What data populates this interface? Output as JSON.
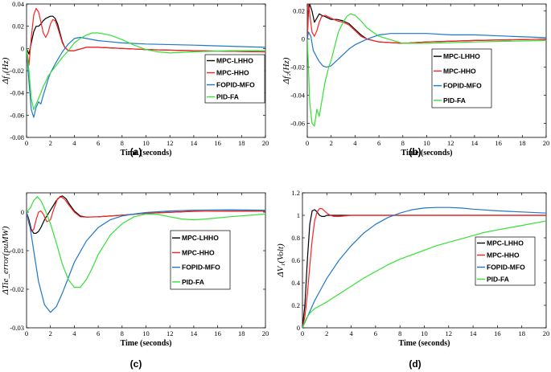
{
  "colors": {
    "MPC-LHHO": "#000000",
    "MPC-HHO": "#ff2020",
    "FOPID-MFO": "#1f77c8",
    "PID-FA": "#33e233"
  },
  "chart_data": [
    {
      "type": "line",
      "caption": "(a)",
      "xlabel": "Time (seconds)",
      "ylabel": "Δf₁(Hz)",
      "xlim": [
        0,
        20
      ],
      "ylim": [
        -0.08,
        0.04
      ],
      "xticks": [
        "0",
        "2",
        "4",
        "6",
        "8",
        "10",
        "12",
        "14",
        "16",
        "18",
        "20"
      ],
      "yticks": [
        "0.04",
        "0.02",
        "0",
        "-0.02",
        "-0.04",
        "-0.06",
        "-0.08"
      ],
      "legend_position": "center-right",
      "series": [
        {
          "name": "MPC-LHHO",
          "x": [
            0,
            0.2,
            0.4,
            0.6,
            0.8,
            1.0,
            1.2,
            1.4,
            1.6,
            1.8,
            2.0,
            2.2,
            2.4,
            2.6,
            2.8,
            3.0,
            3.2,
            3.5,
            4,
            5,
            6,
            8,
            10,
            14,
            20
          ],
          "y": [
            0,
            -0.005,
            0.005,
            0.015,
            0.02,
            0.02,
            0.022,
            0.025,
            0.027,
            0.028,
            0.029,
            0.029,
            0.027,
            0.022,
            0.014,
            0.006,
            0.001,
            -0.002,
            -0.002,
            0.001,
            0.001,
            0,
            -0.001,
            -0.002,
            -0.003
          ]
        },
        {
          "name": "MPC-HHO",
          "x": [
            0,
            0.2,
            0.4,
            0.6,
            0.8,
            1.0,
            1.2,
            1.4,
            1.6,
            1.8,
            2.0,
            2.2,
            2.4,
            2.6,
            2.8,
            3.0,
            3.2,
            3.5,
            4,
            5,
            6,
            8,
            10,
            14,
            20
          ],
          "y": [
            0,
            -0.015,
            0.01,
            0.03,
            0.036,
            0.033,
            0.024,
            0.014,
            0.01,
            0.014,
            0.022,
            0.026,
            0.025,
            0.019,
            0.012,
            0.005,
            0.001,
            -0.002,
            -0.002,
            0.001,
            0.001,
            0,
            -0.001,
            -0.002,
            -0.003
          ]
        },
        {
          "name": "FOPID-MFO",
          "x": [
            0,
            0.2,
            0.4,
            0.6,
            0.8,
            1.0,
            1.2,
            1.4,
            1.6,
            1.8,
            2.0,
            2.5,
            3,
            3.5,
            4,
            4.5,
            5,
            6,
            8,
            10,
            14,
            20
          ],
          "y": [
            0,
            -0.03,
            -0.055,
            -0.062,
            -0.053,
            -0.048,
            -0.05,
            -0.042,
            -0.035,
            -0.028,
            -0.022,
            -0.012,
            -0.003,
            0.004,
            0.009,
            0.01,
            0.009,
            0.007,
            0.005,
            0.004,
            0.003,
            0.001
          ]
        },
        {
          "name": "PID-FA",
          "x": [
            0,
            0.2,
            0.4,
            0.6,
            0.8,
            1.0,
            1.2,
            1.4,
            1.6,
            1.8,
            2.0,
            2.5,
            3,
            3.5,
            4,
            4.5,
            5,
            5.5,
            6,
            7,
            8,
            9,
            10,
            11,
            12,
            14,
            17,
            20
          ],
          "y": [
            0,
            -0.02,
            -0.045,
            -0.055,
            -0.05,
            -0.045,
            -0.04,
            -0.034,
            -0.03,
            -0.025,
            -0.022,
            -0.015,
            -0.008,
            -0.002,
            0.005,
            0.009,
            0.012,
            0.014,
            0.014,
            0.012,
            0.008,
            0.003,
            -0.001,
            -0.003,
            -0.004,
            -0.003,
            -0.002,
            -0.002
          ]
        }
      ]
    },
    {
      "type": "line",
      "caption": "(b)",
      "xlabel": "Time (seconds)",
      "ylabel": "Δf₂(Hz)",
      "xlim": [
        0,
        20
      ],
      "ylim": [
        -0.07,
        0.025
      ],
      "xticks": [
        "0",
        "2",
        "4",
        "6",
        "8",
        "10",
        "12",
        "14",
        "16",
        "18",
        "20"
      ],
      "yticks": [
        "0.02",
        "0",
        "-0.02",
        "-0.04",
        "-0.06"
      ],
      "legend_position": "center-right",
      "series": [
        {
          "name": "MPC-LHHO",
          "x": [
            0,
            0.1,
            0.2,
            0.4,
            0.6,
            0.8,
            1.0,
            1.2,
            1.5,
            2.0,
            2.5,
            3,
            3.5,
            4,
            4.5,
            5,
            6,
            8,
            10,
            14,
            20
          ],
          "y": [
            0,
            0.02,
            0.025,
            0.02,
            0.012,
            0.015,
            0.018,
            0.017,
            0.016,
            0.014,
            0.014,
            0.013,
            0.011,
            0.007,
            0.003,
            0,
            -0.002,
            -0.003,
            -0.002,
            -0.001,
            0
          ]
        },
        {
          "name": "MPC-HHO",
          "x": [
            0,
            0.1,
            0.2,
            0.4,
            0.6,
            0.8,
            1.0,
            1.2,
            1.5,
            2.0,
            2.5,
            3,
            3.5,
            4,
            4.5,
            5,
            6,
            8,
            10,
            14,
            20
          ],
          "y": [
            0,
            0.025,
            0.018,
            0.005,
            0.002,
            0.006,
            0.012,
            0.016,
            0.017,
            0.015,
            0.013,
            0.012,
            0.01,
            0.006,
            0.002,
            0,
            -0.002,
            -0.003,
            -0.002,
            -0.001,
            0
          ]
        },
        {
          "name": "FOPID-MFO",
          "x": [
            0,
            0.1,
            0.3,
            0.5,
            0.8,
            1.0,
            1.3,
            1.6,
            2.0,
            2.5,
            3,
            3.5,
            4,
            5,
            6,
            7,
            8,
            10,
            12,
            14,
            17,
            20
          ],
          "y": [
            0,
            0.005,
            0.002,
            -0.008,
            -0.013,
            -0.016,
            -0.019,
            -0.02,
            -0.019,
            -0.015,
            -0.011,
            -0.007,
            -0.004,
            0,
            0.003,
            0.004,
            0.004,
            0.004,
            0.003,
            0.003,
            0.002,
            0.001
          ]
        },
        {
          "name": "PID-FA",
          "x": [
            0,
            0.1,
            0.2,
            0.4,
            0.6,
            0.8,
            1.0,
            1.2,
            1.5,
            1.8,
            2.0,
            2.3,
            2.6,
            3.0,
            3.3,
            3.6,
            4,
            4.5,
            5,
            6,
            8,
            10,
            14,
            20
          ],
          "y": [
            0,
            -0.02,
            -0.045,
            -0.06,
            -0.062,
            -0.05,
            -0.055,
            -0.045,
            -0.03,
            -0.02,
            -0.015,
            -0.005,
            0.005,
            0.012,
            0.016,
            0.018,
            0.017,
            0.013,
            0.008,
            0.002,
            -0.003,
            -0.003,
            -0.002,
            -0.001
          ]
        }
      ]
    },
    {
      "type": "line",
      "caption": "(c)",
      "xlabel": "Time (seconds)",
      "ylabel": "ΔTie_error(puMW)",
      "xlim": [
        0,
        20
      ],
      "ylim": [
        -0.03,
        0.005
      ],
      "xticks": [
        "0",
        "2",
        "4",
        "6",
        "8",
        "10",
        "12",
        "14",
        "16",
        "18",
        "20"
      ],
      "yticks": [
        "0",
        "-0.01",
        "-0.02",
        "-0.03"
      ],
      "legend_position": "center-right",
      "series": [
        {
          "name": "MPC-LHHO",
          "x": [
            0,
            0.2,
            0.4,
            0.6,
            0.8,
            1.0,
            1.2,
            1.5,
            2.0,
            2.5,
            2.8,
            3.0,
            3.3,
            3.6,
            4,
            4.5,
            5,
            6,
            8,
            10,
            14,
            20
          ],
          "y": [
            0,
            -0.002,
            -0.0045,
            -0.0055,
            -0.0055,
            -0.005,
            -0.004,
            -0.002,
            0.0005,
            0.003,
            0.004,
            0.0042,
            0.0035,
            0.002,
            0.0003,
            -0.001,
            -0.0013,
            -0.0012,
            -0.0008,
            -0.0003,
            0.0002,
            0.0003
          ]
        },
        {
          "name": "MPC-HHO",
          "x": [
            0,
            0.2,
            0.4,
            0.6,
            0.8,
            1.0,
            1.2,
            1.4,
            1.7,
            2.0,
            2.3,
            2.6,
            2.9,
            3.2,
            3.5,
            4,
            4.5,
            5,
            6,
            8,
            10,
            14,
            20
          ],
          "y": [
            0,
            -0.003,
            -0.005,
            -0.0045,
            -0.002,
            0,
            0.0003,
            -0.0005,
            -0.0025,
            -0.002,
            0.001,
            0.0035,
            0.004,
            0.0033,
            0.002,
            0,
            -0.0012,
            -0.0013,
            -0.0012,
            -0.0008,
            -0.0003,
            0.0002,
            0.0003
          ]
        },
        {
          "name": "FOPID-MFO",
          "x": [
            0,
            0.3,
            0.6,
            1.0,
            1.5,
            2.0,
            2.5,
            3.0,
            3.5,
            4,
            5,
            6,
            7,
            8,
            9,
            10,
            12,
            14,
            17,
            20
          ],
          "y": [
            0,
            -0.004,
            -0.01,
            -0.018,
            -0.024,
            -0.026,
            -0.0245,
            -0.021,
            -0.017,
            -0.013,
            -0.0075,
            -0.004,
            -0.002,
            -0.001,
            -0.0005,
            -0.0001,
            0.0003,
            0.0005,
            0.0006,
            0.0005
          ]
        },
        {
          "name": "PID-FA",
          "x": [
            0,
            0.3,
            0.6,
            0.9,
            1.2,
            1.5,
            2.0,
            2.5,
            3.0,
            3.5,
            4,
            4.5,
            5,
            5.5,
            6,
            7,
            8,
            9,
            10,
            11,
            12,
            13,
            14,
            15,
            17,
            20
          ],
          "y": [
            0,
            0.001,
            0.003,
            0.004,
            0.003,
            0.001,
            -0.003,
            -0.008,
            -0.0135,
            -0.0175,
            -0.0195,
            -0.0195,
            -0.0175,
            -0.0145,
            -0.011,
            -0.006,
            -0.003,
            -0.0012,
            -0.0005,
            -0.0006,
            -0.0012,
            -0.0018,
            -0.002,
            -0.0018,
            -0.0012,
            -0.0005
          ]
        }
      ]
    },
    {
      "type": "line",
      "caption": "(d)",
      "xlabel": "Time (seconds)",
      "ylabel": "ΔV₁(Volt)",
      "xlim": [
        0,
        20
      ],
      "ylim": [
        0,
        1.2
      ],
      "xticks": [
        "0",
        "2",
        "4",
        "6",
        "8",
        "10",
        "12",
        "14",
        "16",
        "18",
        "20"
      ],
      "yticks": [
        "1.2",
        "1",
        "0.8",
        "0.6",
        "0.4",
        "0.2",
        "0"
      ],
      "legend_position": "center-right",
      "series": [
        {
          "name": "MPC-LHHO",
          "x": [
            0,
            0.2,
            0.4,
            0.6,
            0.8,
            1.0,
            1.2,
            1.4,
            1.6,
            1.8,
            2.0,
            2.5,
            3,
            4,
            6,
            10,
            20
          ],
          "y": [
            0,
            0.2,
            0.6,
            0.92,
            1.04,
            1.05,
            1.03,
            1.0,
            0.99,
            0.99,
            1.0,
            1.0,
            1.0,
            1.0,
            1.0,
            1.0,
            1.0
          ]
        },
        {
          "name": "MPC-HHO",
          "x": [
            0,
            0.2,
            0.4,
            0.6,
            0.8,
            1.0,
            1.2,
            1.4,
            1.6,
            1.8,
            2.0,
            2.3,
            2.6,
            3,
            4,
            6,
            10,
            20
          ],
          "y": [
            0,
            0.1,
            0.3,
            0.55,
            0.78,
            0.95,
            1.03,
            1.06,
            1.06,
            1.04,
            1.02,
            1.0,
            0.99,
            0.99,
            1.0,
            1.0,
            1.0,
            1.0
          ]
        },
        {
          "name": "FOPID-MFO",
          "x": [
            0,
            0.5,
            1,
            1.5,
            2,
            3,
            4,
            5,
            6,
            7,
            8,
            9,
            10,
            11,
            12,
            13,
            14,
            16,
            18,
            20
          ],
          "y": [
            0,
            0.12,
            0.24,
            0.34,
            0.44,
            0.6,
            0.73,
            0.84,
            0.92,
            0.98,
            1.02,
            1.05,
            1.065,
            1.07,
            1.07,
            1.065,
            1.055,
            1.04,
            1.03,
            1.02
          ]
        },
        {
          "name": "PID-FA",
          "x": [
            0,
            0.3,
            0.6,
            1,
            1.5,
            2,
            3,
            4,
            5,
            6,
            7,
            8,
            9,
            10,
            11,
            12,
            13,
            14,
            15,
            16,
            17,
            18,
            19,
            20
          ],
          "y": [
            0,
            0.08,
            0.13,
            0.17,
            0.2,
            0.23,
            0.3,
            0.37,
            0.44,
            0.5,
            0.56,
            0.61,
            0.65,
            0.69,
            0.73,
            0.76,
            0.79,
            0.82,
            0.85,
            0.87,
            0.89,
            0.91,
            0.93,
            0.95
          ]
        }
      ]
    }
  ]
}
